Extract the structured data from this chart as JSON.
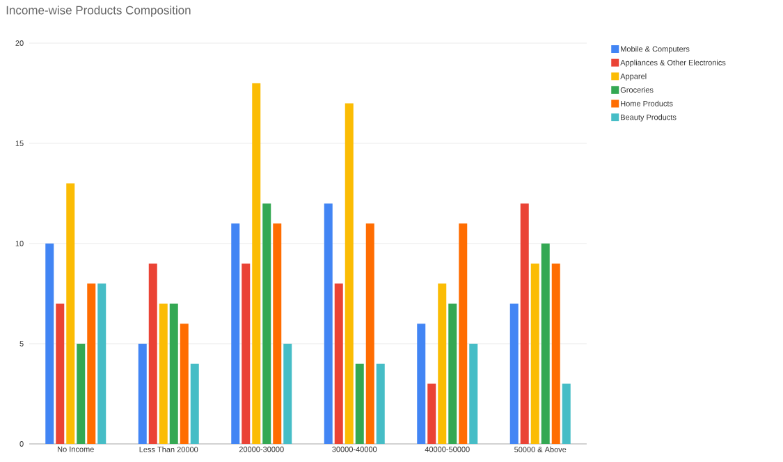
{
  "chart_data": {
    "type": "bar",
    "title": "Income-wise Products Composition",
    "categories": [
      "No Income",
      "Less Than 20000",
      "20000-30000",
      "30000-40000",
      "40000-50000",
      "50000 & Above"
    ],
    "series": [
      {
        "name": "Mobile & Computers",
        "color": "#4285f4",
        "values": [
          10,
          5,
          11,
          12,
          6,
          7
        ]
      },
      {
        "name": "Appliances & Other Electronics",
        "color": "#ea4335",
        "values": [
          7,
          9,
          9,
          8,
          3,
          12
        ]
      },
      {
        "name": "Apparel",
        "color": "#fbbc04",
        "values": [
          13,
          7,
          18,
          17,
          8,
          9
        ]
      },
      {
        "name": "Groceries",
        "color": "#34a853",
        "values": [
          5,
          7,
          12,
          4,
          7,
          10
        ]
      },
      {
        "name": "Home Products",
        "color": "#ff6d01",
        "values": [
          8,
          6,
          11,
          11,
          11,
          9
        ]
      },
      {
        "name": "Beauty Products",
        "color": "#46bdc6",
        "values": [
          8,
          4,
          5,
          4,
          5,
          3
        ]
      }
    ],
    "ylim": [
      0,
      20
    ],
    "yticks": [
      0,
      5,
      10,
      15,
      20
    ],
    "grid": "y",
    "legend": "top right"
  }
}
